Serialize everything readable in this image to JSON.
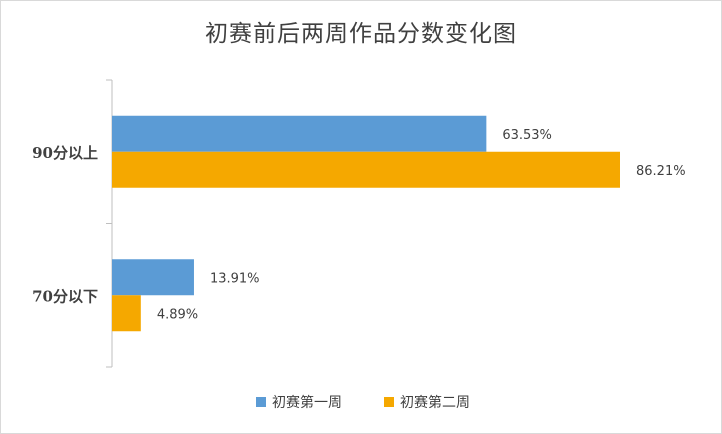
{
  "chart_data": {
    "type": "bar",
    "orientation": "horizontal",
    "title": "初赛前后两周作品分数变化图",
    "categories": [
      "90分以上",
      "70分以下"
    ],
    "series": [
      {
        "name": "初赛第一周",
        "values": [
          63.53,
          13.91
        ],
        "labels": [
          "63.53%",
          "13.91%"
        ],
        "color": "#5b9bd5"
      },
      {
        "name": "初赛第二周",
        "values": [
          86.21,
          4.89
        ],
        "labels": [
          "86.21%",
          "4.89%"
        ],
        "color": "#f5a800"
      }
    ],
    "xlim": [
      0,
      100
    ],
    "grid": false,
    "legend_position": "bottom"
  }
}
